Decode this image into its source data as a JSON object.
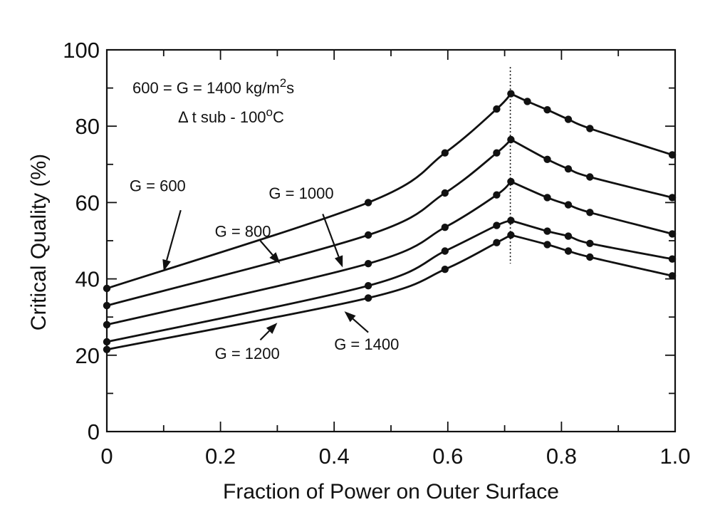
{
  "chart_data": {
    "type": "line",
    "title": "",
    "xlabel": "Fraction of Power on Outer Surface",
    "ylabel": "Critical Quality (%)",
    "xlim": [
      0,
      1.0
    ],
    "ylim": [
      0,
      100
    ],
    "x_ticks": [
      0,
      0.2,
      0.4,
      0.6,
      0.8,
      1.0
    ],
    "x_tick_labels": [
      "0",
      "0.2",
      "0.4",
      "0.6",
      "0.8",
      "1.0"
    ],
    "y_ticks": [
      0,
      20,
      40,
      60,
      80,
      100
    ],
    "y_tick_labels": [
      "0",
      "20",
      "40",
      "60",
      "80",
      "100"
    ],
    "grid": false,
    "vertical_reference_x": 0.71,
    "annotations": {
      "range_text": "600 = G  = 1400 kg/m",
      "range_superscript": "2",
      "range_suffix": "s",
      "subcooling_text": "Δ t  sub - 100",
      "subcooling_superscript": "o",
      "subcooling_suffix": "C"
    },
    "series": [
      {
        "name": "G = 600",
        "label_pos": [
          0.04,
          63
        ],
        "arrow_from": [
          0.13,
          58
        ],
        "arrow_to": [
          0.1,
          42
        ],
        "x": [
          0,
          0.46,
          0.595,
          0.686,
          0.711,
          0.74,
          0.775,
          0.812,
          0.85,
          0.995
        ],
        "y": [
          37.5,
          60,
          73,
          84.5,
          88.5,
          86.5,
          84.3,
          81.8,
          79.4,
          72.5
        ]
      },
      {
        "name": "G = 800",
        "label_pos": [
          0.19,
          51
        ],
        "arrow_from": [
          0.27,
          50
        ],
        "arrow_to": [
          0.305,
          44
        ],
        "x": [
          0,
          0.46,
          0.595,
          0.686,
          0.711,
          0.775,
          0.812,
          0.85,
          0.995
        ],
        "y": [
          33,
          51.5,
          62.5,
          73,
          76.5,
          71.3,
          68.8,
          66.7,
          61.3
        ]
      },
      {
        "name": "G = 1000",
        "label_pos": [
          0.285,
          61
        ],
        "arrow_from": [
          0.38,
          57
        ],
        "arrow_to": [
          0.415,
          43
        ],
        "x": [
          0,
          0.46,
          0.595,
          0.686,
          0.711,
          0.775,
          0.812,
          0.85,
          0.995
        ],
        "y": [
          28,
          44,
          53.5,
          62,
          65.5,
          61.3,
          59.4,
          57.4,
          51.8
        ]
      },
      {
        "name": "G = 1200",
        "label_pos": [
          0.19,
          19
        ],
        "arrow_from": [
          0.27,
          24
        ],
        "arrow_to": [
          0.3,
          28.5
        ],
        "x": [
          0,
          0.46,
          0.595,
          0.686,
          0.711,
          0.775,
          0.812,
          0.85,
          0.995
        ],
        "y": [
          23.5,
          38.2,
          47.3,
          54,
          55.3,
          52.5,
          51.2,
          49.3,
          45.2
        ]
      },
      {
        "name": "G = 1400",
        "label_pos": [
          0.4,
          21.5
        ],
        "arrow_from": [
          0.46,
          26
        ],
        "arrow_to": [
          0.418,
          31.5
        ],
        "x": [
          0,
          0.46,
          0.595,
          0.686,
          0.711,
          0.775,
          0.812,
          0.85,
          0.995
        ],
        "y": [
          21.5,
          35,
          42.5,
          49.5,
          51.5,
          49,
          47.3,
          45.7,
          40.8
        ]
      }
    ]
  }
}
